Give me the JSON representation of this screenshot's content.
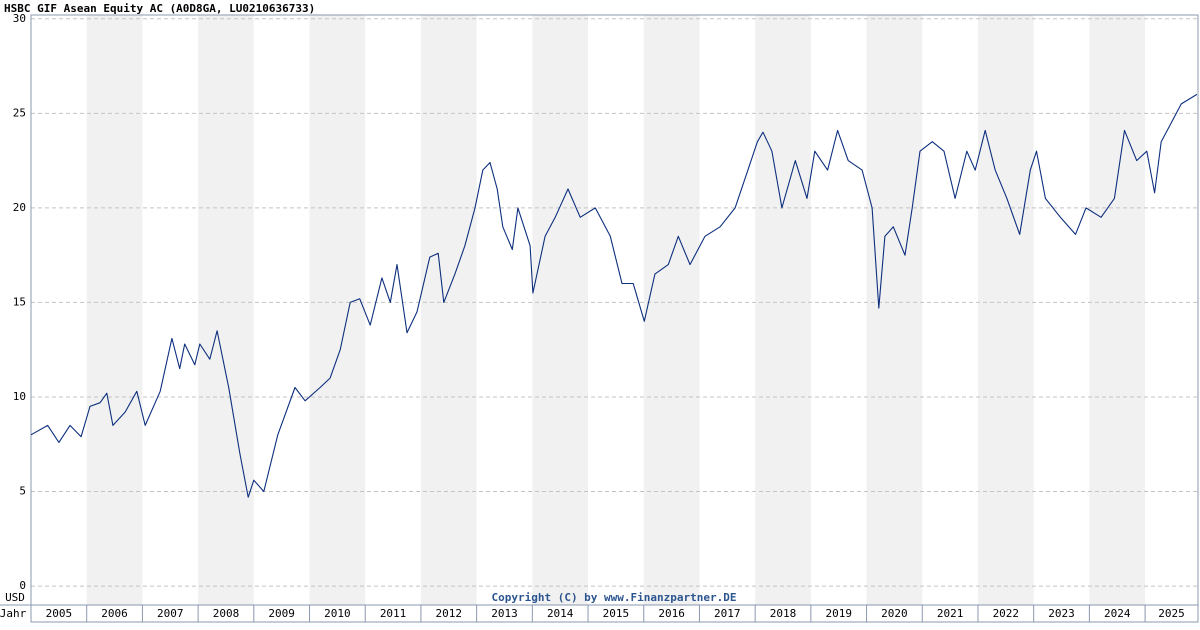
{
  "chart_data": {
    "type": "line",
    "title": "HSBC GIF Asean Equity AC (A0D8GA, LU0210636733)",
    "y_label": "USD",
    "x_label": "Jahr",
    "annotation": "Copyright (C) by www.Finanzpartner.DE",
    "color": "#0d2f7e",
    "grid": true,
    "x": [
      2005.0,
      2005.3,
      2005.5,
      2005.7,
      2005.9,
      2006.06,
      2006.24,
      2006.36,
      2006.47,
      2006.69,
      2006.9,
      2007.05,
      2007.32,
      2007.53,
      2007.67,
      2007.76,
      2007.94,
      2008.03,
      2008.21,
      2008.34,
      2008.55,
      2008.75,
      2008.9,
      2009.0,
      2009.18,
      2009.43,
      2009.74,
      2009.92,
      2010.19,
      2010.37,
      2010.55,
      2010.73,
      2010.9,
      2011.09,
      2011.3,
      2011.45,
      2011.57,
      2011.75,
      2011.93,
      2012.16,
      2012.31,
      2012.41,
      2012.61,
      2012.79,
      2012.97,
      2013.11,
      2013.24,
      2013.37,
      2013.47,
      2013.64,
      2013.74,
      2013.96,
      2014.01,
      2014.23,
      2014.41,
      2014.64,
      2014.86,
      2015.13,
      2015.4,
      2015.61,
      2015.81,
      2016.01,
      2016.2,
      2016.44,
      2016.62,
      2016.83,
      2017.1,
      2017.37,
      2017.64,
      2017.87,
      2018.04,
      2018.14,
      2018.3,
      2018.48,
      2018.72,
      2018.93,
      2019.07,
      2019.3,
      2019.48,
      2019.67,
      2019.92,
      2020.1,
      2020.22,
      2020.33,
      2020.48,
      2020.69,
      2020.82,
      2020.96,
      2021.18,
      2021.39,
      2021.59,
      2021.8,
      2021.95,
      2022.13,
      2022.31,
      2022.52,
      2022.75,
      2022.94,
      2023.05,
      2023.21,
      2023.48,
      2023.75,
      2023.94,
      2024.21,
      2024.45,
      2024.63,
      2024.85,
      2025.03,
      2025.17,
      2025.29,
      2025.47,
      2025.65,
      2025.93
    ],
    "values": [
      8.0,
      8.5,
      7.6,
      8.5,
      7.9,
      9.5,
      9.7,
      10.2,
      8.5,
      9.2,
      10.3,
      8.5,
      10.3,
      13.1,
      11.5,
      12.8,
      11.7,
      12.8,
      12.0,
      13.5,
      10.5,
      7.0,
      4.7,
      5.6,
      5.0,
      8.0,
      10.5,
      9.8,
      10.5,
      11.0,
      12.5,
      15.0,
      15.2,
      13.8,
      16.3,
      15.0,
      17.0,
      13.4,
      14.5,
      17.4,
      17.6,
      15.0,
      16.5,
      18.0,
      20.0,
      22.0,
      22.4,
      21.0,
      19.0,
      17.8,
      20.0,
      18.0,
      15.5,
      18.5,
      19.5,
      21.0,
      19.5,
      20.0,
      18.5,
      16.0,
      16.0,
      14.0,
      16.5,
      17.0,
      18.5,
      17.0,
      18.5,
      19.0,
      20.0,
      22.0,
      23.5,
      24.0,
      23.0,
      20.0,
      22.5,
      20.5,
      23.0,
      22.0,
      24.1,
      22.5,
      22.0,
      20.0,
      14.7,
      18.5,
      19.0,
      17.5,
      20.0,
      23.0,
      23.5,
      23.0,
      20.5,
      23.0,
      22.0,
      24.1,
      22.0,
      20.5,
      18.6,
      22.0,
      23.0,
      20.5,
      19.5,
      18.6,
      20.0,
      19.5,
      20.5,
      24.1,
      22.5,
      23.0,
      20.8,
      23.5,
      24.5,
      25.5,
      26.0
    ],
    "xlim": [
      2005.0,
      2025.95
    ],
    "xticks": [
      {
        "value": 2005,
        "label": "2005"
      },
      {
        "value": 2006,
        "label": "2006"
      },
      {
        "value": 2007,
        "label": "2007"
      },
      {
        "value": 2008,
        "label": "2008"
      },
      {
        "value": 2009,
        "label": "2009"
      },
      {
        "value": 2010,
        "label": "2010"
      },
      {
        "value": 2011,
        "label": "2011"
      },
      {
        "value": 2012,
        "label": "2012"
      },
      {
        "value": 2013,
        "label": "2013"
      },
      {
        "value": 2014,
        "label": "2014"
      },
      {
        "value": 2015,
        "label": "2015"
      },
      {
        "value": 2016,
        "label": "2016"
      },
      {
        "value": 2017,
        "label": "2017"
      },
      {
        "value": 2018,
        "label": "2018"
      },
      {
        "value": 2019,
        "label": "2019"
      },
      {
        "value": 2020,
        "label": "2020"
      },
      {
        "value": 2021,
        "label": "2021"
      },
      {
        "value": 2022,
        "label": "2022"
      },
      {
        "value": 2023,
        "label": "2023"
      },
      {
        "value": 2024,
        "label": "2024"
      },
      {
        "value": 2025,
        "label": "2025"
      }
    ],
    "ylim": [
      -1,
      30.2
    ],
    "yticks": [
      0,
      5,
      10,
      15,
      20,
      25,
      30
    ]
  }
}
